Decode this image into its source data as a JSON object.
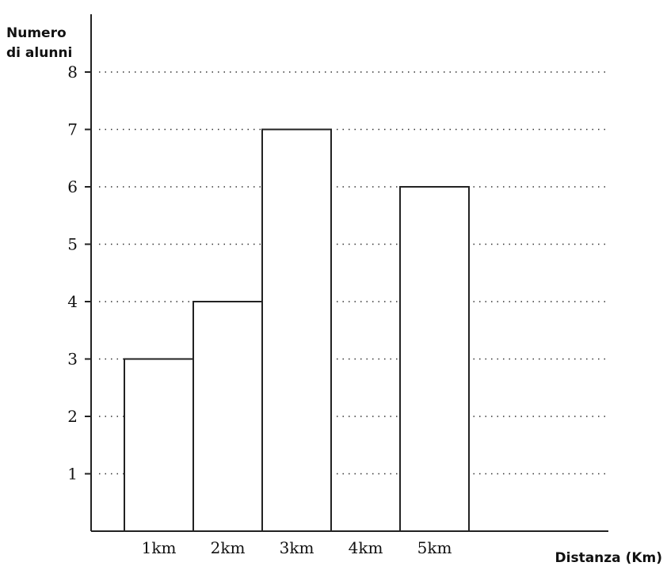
{
  "chart_data": {
    "type": "bar",
    "title": "",
    "ylabel_line1": "Numero",
    "ylabel_line2": "di alunni",
    "xlabel": "Distanza (Km)",
    "categories": [
      "1km",
      "2km",
      "3km",
      "4km",
      "5km"
    ],
    "values": [
      3,
      4,
      7,
      null,
      6
    ],
    "ylim": [
      0,
      8
    ],
    "yticks": [
      1,
      2,
      3,
      4,
      5,
      6,
      7,
      8
    ],
    "grid": "horizontal dotted",
    "colors": {
      "bar_fill": "#ffffff",
      "bar_stroke": "#222222",
      "axis": "#222222"
    }
  }
}
